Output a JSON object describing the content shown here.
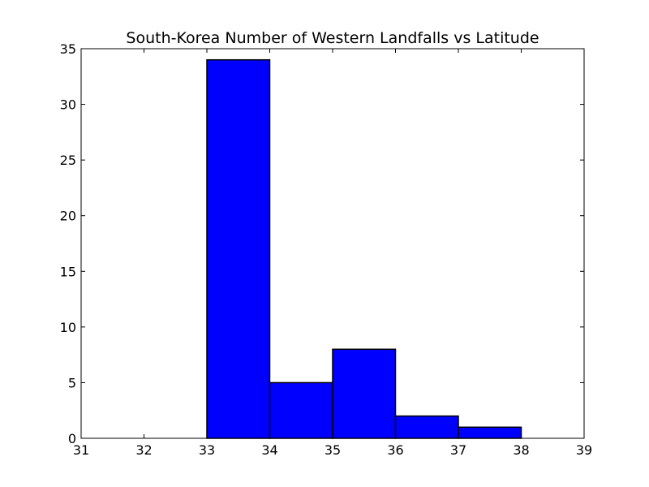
{
  "chart_data": {
    "type": "bar",
    "title": "South-Korea Number of Western Landfalls vs Latitude",
    "xlabel": "",
    "ylabel": "",
    "xlim": [
      31,
      39
    ],
    "ylim": [
      0,
      35
    ],
    "x_ticks": [
      "31",
      "32",
      "33",
      "34",
      "35",
      "36",
      "37",
      "38",
      "39"
    ],
    "y_ticks": [
      "0",
      "5",
      "10",
      "15",
      "20",
      "25",
      "30",
      "35"
    ],
    "bins": [
      {
        "x0": 31,
        "x1": 32,
        "value": 0
      },
      {
        "x0": 32,
        "x1": 33,
        "value": 0
      },
      {
        "x0": 33,
        "x1": 34,
        "value": 34
      },
      {
        "x0": 34,
        "x1": 35,
        "value": 5
      },
      {
        "x0": 35,
        "x1": 36,
        "value": 8
      },
      {
        "x0": 36,
        "x1": 37,
        "value": 2
      },
      {
        "x0": 37,
        "x1": 38,
        "value": 1
      }
    ],
    "bar_color": "#0000ff",
    "edge_color": "#000000",
    "grid": false,
    "legend": "none"
  }
}
